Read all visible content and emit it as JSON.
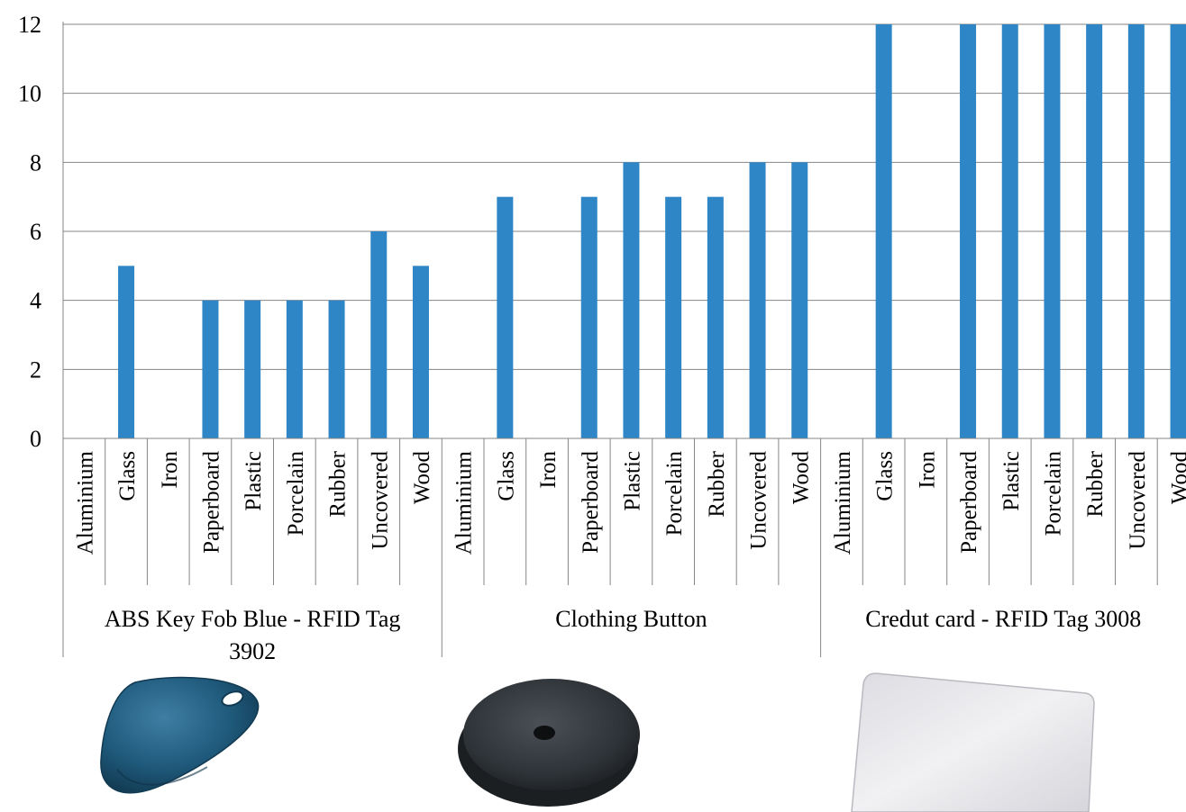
{
  "chart_data": {
    "type": "bar",
    "title": "",
    "xlabel": "",
    "ylabel": "",
    "ylim": [
      0,
      12
    ],
    "yticks": [
      "0",
      "2",
      "4",
      "6",
      "8",
      "10",
      "12"
    ],
    "grid": true,
    "colors": {
      "bar": "#2e86c6",
      "grid": "#868686"
    },
    "groups": [
      {
        "name_lines": [
          "ABS Key Fob Blue - RFID Tag",
          "3902"
        ],
        "categories": [
          "Aluminium",
          "Glass",
          "Iron",
          "Paperboard",
          "Plastic",
          "Porcelain",
          "Rubber",
          "Uncovered",
          "Wood"
        ],
        "values": [
          0,
          5,
          0,
          4,
          4,
          4,
          4,
          6,
          5
        ]
      },
      {
        "name_lines": [
          "Clothing Button"
        ],
        "categories": [
          "Aluminium",
          "Glass",
          "Iron",
          "Paperboard",
          "Plastic",
          "Porcelain",
          "Rubber",
          "Uncovered",
          "Wood"
        ],
        "values": [
          0,
          7,
          0,
          7,
          8,
          7,
          7,
          8,
          8
        ]
      },
      {
        "name_lines": [
          "Credut card - RFID Tag 3008"
        ],
        "categories": [
          "Aluminium",
          "Glass",
          "Iron",
          "Paperboard",
          "Plastic",
          "Porcelain",
          "Rubber",
          "Uncovered",
          "Wood"
        ],
        "values": [
          0,
          12,
          0,
          12,
          12,
          12,
          12,
          12,
          12
        ]
      }
    ]
  },
  "images": [
    {
      "name": "abs-key-fob-photo",
      "color": "#1f5a7c"
    },
    {
      "name": "clothing-button-photo",
      "color": "#2e3338"
    },
    {
      "name": "credit-card-photo",
      "color": "#ececee"
    }
  ]
}
